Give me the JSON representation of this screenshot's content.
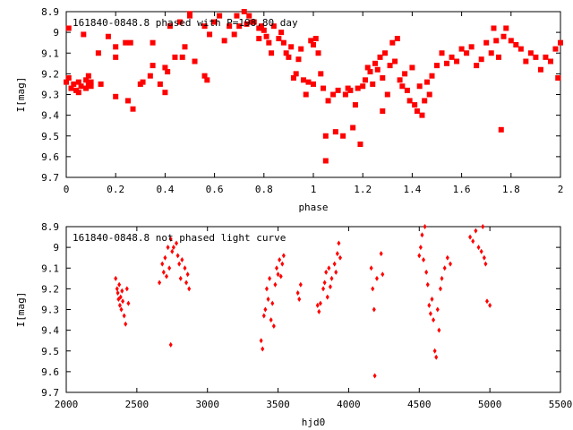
{
  "chart_data": [
    {
      "type": "scatter",
      "title": "161840-0848.8 phased with P=198.80 day",
      "xlabel": "phase",
      "ylabel": "I[mag]",
      "xlim": [
        0,
        2
      ],
      "ylim": [
        9.7,
        8.9
      ],
      "y_inverted": true,
      "grid": false,
      "marker_color": "#ff0000",
      "xticks": [
        "0",
        "0.2",
        "0.4",
        "0.6",
        "0.8",
        "1",
        "1.2",
        "1.4",
        "1.6",
        "1.8",
        "2"
      ],
      "yticks": [
        "8.9",
        "9",
        "9.1",
        "9.2",
        "9.3",
        "9.4",
        "9.5",
        "9.6",
        "9.7"
      ],
      "series": [
        {
          "points": [
            [
              0.0,
              9.24
            ],
            [
              0.01,
              9.22
            ],
            [
              0.01,
              8.98
            ],
            [
              0.02,
              9.27
            ],
            [
              0.03,
              9.25
            ],
            [
              0.04,
              9.28
            ],
            [
              0.05,
              9.24
            ],
            [
              0.05,
              9.29
            ],
            [
              0.06,
              9.26
            ],
            [
              0.07,
              9.01
            ],
            [
              0.08,
              9.27
            ],
            [
              0.08,
              9.23
            ],
            [
              0.09,
              9.25
            ],
            [
              0.09,
              9.21
            ],
            [
              0.1,
              9.24
            ],
            [
              0.1,
              9.26
            ],
            [
              0.13,
              9.1
            ],
            [
              0.14,
              9.25
            ],
            [
              0.17,
              9.02
            ],
            [
              0.2,
              9.07
            ],
            [
              0.2,
              9.12
            ],
            [
              0.2,
              9.31
            ],
            [
              0.24,
              9.05
            ],
            [
              0.25,
              9.33
            ],
            [
              0.26,
              9.05
            ],
            [
              0.27,
              9.37
            ],
            [
              0.3,
              9.25
            ],
            [
              0.31,
              9.24
            ],
            [
              0.34,
              9.21
            ],
            [
              0.35,
              9.16
            ],
            [
              0.35,
              9.05
            ],
            [
              0.38,
              9.25
            ],
            [
              0.4,
              9.29
            ],
            [
              0.4,
              9.17
            ],
            [
              0.41,
              9.19
            ],
            [
              0.42,
              8.97
            ],
            [
              0.44,
              9.12
            ],
            [
              0.46,
              8.95
            ],
            [
              0.47,
              9.12
            ],
            [
              0.48,
              9.07
            ],
            [
              0.5,
              8.91
            ],
            [
              0.5,
              8.92
            ],
            [
              0.52,
              9.14
            ],
            [
              0.56,
              9.21
            ],
            [
              0.56,
              8.97
            ],
            [
              0.57,
              9.23
            ],
            [
              0.58,
              9.01
            ],
            [
              0.6,
              8.95
            ],
            [
              0.62,
              8.92
            ],
            [
              0.64,
              9.04
            ],
            [
              0.66,
              8.97
            ],
            [
              0.68,
              9.01
            ],
            [
              0.69,
              8.92
            ],
            [
              0.7,
              8.97
            ],
            [
              0.72,
              8.9
            ],
            [
              0.73,
              8.96
            ],
            [
              0.74,
              8.92
            ],
            [
              0.75,
              8.95
            ],
            [
              0.76,
              8.95
            ],
            [
              0.78,
              8.98
            ],
            [
              0.78,
              9.03
            ],
            [
              0.79,
              8.97
            ],
            [
              0.8,
              8.99
            ],
            [
              0.81,
              9.02
            ],
            [
              0.82,
              9.05
            ],
            [
              0.83,
              9.1
            ],
            [
              0.84,
              8.97
            ],
            [
              0.86,
              9.03
            ],
            [
              0.87,
              9.0
            ],
            [
              0.88,
              9.05
            ],
            [
              0.89,
              9.1
            ],
            [
              0.9,
              9.12
            ],
            [
              0.91,
              9.07
            ],
            [
              0.92,
              9.22
            ],
            [
              0.93,
              9.2
            ],
            [
              0.94,
              9.13
            ],
            [
              0.95,
              9.08
            ],
            [
              0.96,
              9.23
            ],
            [
              0.97,
              9.3
            ],
            [
              0.98,
              9.24
            ],
            [
              0.99,
              9.04
            ],
            [
              1.0,
              9.06
            ],
            [
              1.0,
              9.25
            ],
            [
              1.01,
              9.03
            ],
            [
              1.02,
              9.1
            ],
            [
              1.03,
              9.2
            ],
            [
              1.04,
              9.27
            ],
            [
              1.05,
              9.62
            ],
            [
              1.05,
              9.5
            ],
            [
              1.06,
              9.33
            ],
            [
              1.08,
              9.3
            ],
            [
              1.09,
              9.48
            ],
            [
              1.1,
              9.28
            ],
            [
              1.12,
              9.5
            ],
            [
              1.13,
              9.3
            ],
            [
              1.14,
              9.27
            ],
            [
              1.15,
              9.28
            ],
            [
              1.16,
              9.46
            ],
            [
              1.17,
              9.35
            ],
            [
              1.18,
              9.27
            ],
            [
              1.19,
              9.54
            ],
            [
              1.2,
              9.26
            ],
            [
              1.21,
              9.23
            ],
            [
              1.22,
              9.17
            ],
            [
              1.23,
              9.19
            ],
            [
              1.24,
              9.25
            ],
            [
              1.25,
              9.15
            ],
            [
              1.26,
              9.18
            ],
            [
              1.27,
              9.12
            ],
            [
              1.28,
              9.22
            ],
            [
              1.28,
              9.38
            ],
            [
              1.29,
              9.1
            ],
            [
              1.3,
              9.3
            ],
            [
              1.31,
              9.16
            ],
            [
              1.32,
              9.05
            ],
            [
              1.33,
              9.14
            ],
            [
              1.34,
              9.03
            ],
            [
              1.35,
              9.23
            ],
            [
              1.36,
              9.26
            ],
            [
              1.37,
              9.2
            ],
            [
              1.38,
              9.28
            ],
            [
              1.39,
              9.33
            ],
            [
              1.4,
              9.17
            ],
            [
              1.41,
              9.35
            ],
            [
              1.42,
              9.38
            ],
            [
              1.43,
              9.26
            ],
            [
              1.44,
              9.4
            ],
            [
              1.45,
              9.33
            ],
            [
              1.46,
              9.24
            ],
            [
              1.47,
              9.3
            ],
            [
              1.48,
              9.21
            ],
            [
              1.5,
              9.16
            ],
            [
              1.52,
              9.1
            ],
            [
              1.54,
              9.15
            ],
            [
              1.56,
              9.12
            ],
            [
              1.58,
              9.14
            ],
            [
              1.6,
              9.08
            ],
            [
              1.62,
              9.1
            ],
            [
              1.64,
              9.07
            ],
            [
              1.66,
              9.16
            ],
            [
              1.68,
              9.13
            ],
            [
              1.7,
              9.05
            ],
            [
              1.72,
              9.1
            ],
            [
              1.73,
              8.98
            ],
            [
              1.74,
              9.04
            ],
            [
              1.75,
              9.12
            ],
            [
              1.76,
              9.47
            ],
            [
              1.77,
              9.02
            ],
            [
              1.78,
              8.98
            ],
            [
              1.8,
              9.04
            ],
            [
              1.82,
              9.06
            ],
            [
              1.84,
              9.08
            ],
            [
              1.86,
              9.14
            ],
            [
              1.88,
              9.1
            ],
            [
              1.9,
              9.12
            ],
            [
              1.92,
              9.18
            ],
            [
              1.94,
              9.12
            ],
            [
              1.96,
              9.14
            ],
            [
              1.98,
              9.08
            ],
            [
              1.99,
              9.22
            ],
            [
              2.0,
              9.05
            ]
          ]
        }
      ]
    },
    {
      "type": "scatter",
      "title": "161840-0848.8 not phased light curve",
      "xlabel": "hjd0",
      "ylabel": "I[mag]",
      "xlim": [
        2000,
        5500
      ],
      "ylim": [
        9.7,
        8.9
      ],
      "y_inverted": true,
      "grid": false,
      "marker_color": "#ff0000",
      "xticks": [
        "2000",
        "2500",
        "3000",
        "3500",
        "4000",
        "4500",
        "5000",
        "5500"
      ],
      "yticks": [
        "8.9",
        "9",
        "9.1",
        "9.2",
        "9.3",
        "9.4",
        "9.5",
        "9.6",
        "9.7"
      ],
      "series": [
        {
          "points": [
            [
              2350,
              9.15
            ],
            [
              2360,
              9.2
            ],
            [
              2365,
              9.22
            ],
            [
              2370,
              9.25
            ],
            [
              2375,
              9.18
            ],
            [
              2380,
              9.28
            ],
            [
              2385,
              9.24
            ],
            [
              2390,
              9.3
            ],
            [
              2395,
              9.21
            ],
            [
              2400,
              9.26
            ],
            [
              2410,
              9.33
            ],
            [
              2420,
              9.37
            ],
            [
              2430,
              9.2
            ],
            [
              2440,
              9.27
            ],
            [
              2660,
              9.17
            ],
            [
              2680,
              9.08
            ],
            [
              2690,
              9.12
            ],
            [
              2700,
              9.05
            ],
            [
              2710,
              9.14
            ],
            [
              2720,
              9.0
            ],
            [
              2730,
              9.1
            ],
            [
              2740,
              8.96
            ],
            [
              2740,
              9.47
            ],
            [
              2750,
              9.02
            ],
            [
              2760,
              9.0
            ],
            [
              2780,
              8.98
            ],
            [
              2790,
              9.04
            ],
            [
              2800,
              9.08
            ],
            [
              2810,
              9.15
            ],
            [
              2820,
              9.06
            ],
            [
              2840,
              9.1
            ],
            [
              2850,
              9.17
            ],
            [
              2860,
              9.13
            ],
            [
              2870,
              9.2
            ],
            [
              3380,
              9.45
            ],
            [
              3390,
              9.49
            ],
            [
              3400,
              9.33
            ],
            [
              3410,
              9.3
            ],
            [
              3420,
              9.2
            ],
            [
              3430,
              9.25
            ],
            [
              3440,
              9.15
            ],
            [
              3450,
              9.35
            ],
            [
              3460,
              9.27
            ],
            [
              3470,
              9.38
            ],
            [
              3480,
              9.18
            ],
            [
              3490,
              9.1
            ],
            [
              3500,
              9.13
            ],
            [
              3510,
              9.06
            ],
            [
              3520,
              9.14
            ],
            [
              3530,
              9.08
            ],
            [
              3540,
              9.04
            ],
            [
              3640,
              9.22
            ],
            [
              3650,
              9.25
            ],
            [
              3660,
              9.18
            ],
            [
              3780,
              9.28
            ],
            [
              3790,
              9.31
            ],
            [
              3800,
              9.27
            ],
            [
              3820,
              9.2
            ],
            [
              3830,
              9.17
            ],
            [
              3840,
              9.12
            ],
            [
              3850,
              9.24
            ],
            [
              3860,
              9.1
            ],
            [
              3870,
              9.19
            ],
            [
              3880,
              9.15
            ],
            [
              3900,
              9.08
            ],
            [
              3910,
              9.12
            ],
            [
              3920,
              9.03
            ],
            [
              3930,
              8.98
            ],
            [
              3940,
              9.05
            ],
            [
              4160,
              9.1
            ],
            [
              4170,
              9.2
            ],
            [
              4180,
              9.3
            ],
            [
              4185,
              9.62
            ],
            [
              4200,
              9.15
            ],
            [
              4230,
              9.03
            ],
            [
              4240,
              9.13
            ],
            [
              4500,
              9.04
            ],
            [
              4510,
              9.0
            ],
            [
              4520,
              8.94
            ],
            [
              4530,
              9.06
            ],
            [
              4540,
              8.9
            ],
            [
              4550,
              9.12
            ],
            [
              4560,
              9.18
            ],
            [
              4570,
              9.28
            ],
            [
              4580,
              9.32
            ],
            [
              4590,
              9.25
            ],
            [
              4600,
              9.35
            ],
            [
              4610,
              9.5
            ],
            [
              4620,
              9.53
            ],
            [
              4630,
              9.3
            ],
            [
              4640,
              9.4
            ],
            [
              4650,
              9.2
            ],
            [
              4660,
              9.15
            ],
            [
              4680,
              9.1
            ],
            [
              4700,
              9.05
            ],
            [
              4720,
              9.08
            ],
            [
              4860,
              8.95
            ],
            [
              4880,
              8.97
            ],
            [
              4900,
              8.92
            ],
            [
              4920,
              9.0
            ],
            [
              4940,
              9.02
            ],
            [
              4950,
              8.9
            ],
            [
              4960,
              9.05
            ],
            [
              4970,
              9.08
            ],
            [
              4980,
              9.26
            ],
            [
              5000,
              9.28
            ]
          ]
        }
      ]
    }
  ]
}
